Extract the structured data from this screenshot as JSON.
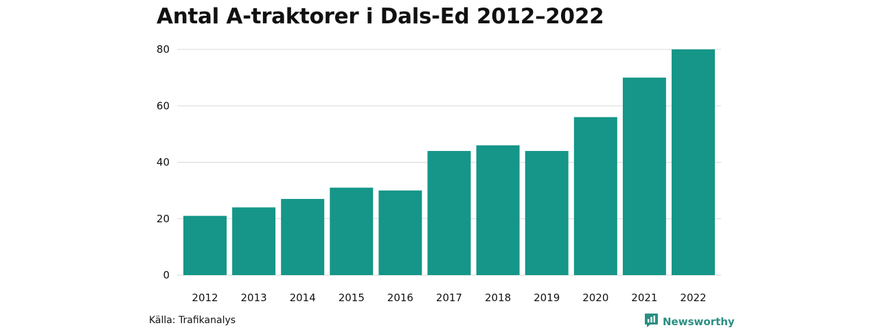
{
  "title": "Antal A-traktorer i Dals-Ed 2012–2022",
  "source": "Källa: Trafikanalys",
  "brand": {
    "label": "Newsworthy",
    "icon": "newsworthy-logo-icon"
  },
  "colors": {
    "bar": "#159688",
    "grid": "#d9d9d9",
    "text": "#111111",
    "brand": "#2a8f82"
  },
  "chart_data": {
    "type": "bar",
    "categories": [
      "2012",
      "2013",
      "2014",
      "2015",
      "2016",
      "2017",
      "2018",
      "2019",
      "2020",
      "2021",
      "2022"
    ],
    "values": [
      21,
      24,
      27,
      31,
      30,
      44,
      46,
      44,
      56,
      70,
      80
    ],
    "title": "Antal A-traktorer i Dals-Ed 2012–2022",
    "xlabel": "",
    "ylabel": "",
    "ylim": [
      0,
      80
    ],
    "yticks": [
      "0",
      "20",
      "40",
      "60",
      "80"
    ],
    "grid": true,
    "legend": "none"
  }
}
